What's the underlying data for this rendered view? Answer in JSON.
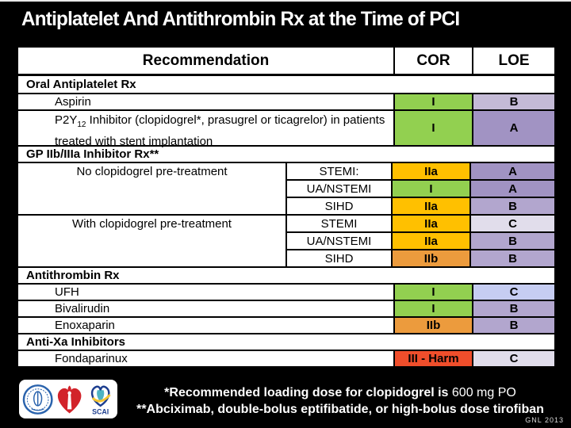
{
  "title": "Antiplatelet And Antithrombin Rx at the Time of PCI",
  "colors": {
    "slide_bg": "#000000",
    "table_bg": "#FFFFFF",
    "cor_I": "#92D050",
    "cor_IIa": "#FFC000",
    "cor_IIb": "#EC9B3D",
    "cor_III_harm": "#EF4E2B",
    "loe_A": "#A193C3",
    "loe_B": "#B2A6CE",
    "loe_B_light": "#C4BAD6",
    "loe_C": "#E1DDEB",
    "loe_C_blue": "#C6CDF2"
  },
  "table": {
    "headers": {
      "recommendation": "Recommendation",
      "cor": "COR",
      "loe": "LOE"
    },
    "rows": [
      {
        "type": "section",
        "label": "Oral Antiplatelet Rx"
      },
      {
        "type": "simple",
        "label": "Aspirin",
        "cor": "I",
        "cor_bg": "#92D050",
        "loe": "B",
        "loe_bg": "#C4BAD6"
      },
      {
        "type": "simple",
        "tall": true,
        "label_parts": {
          "pre": "P2Y",
          "sub": "12",
          "post": " Inhibitor (clopidogrel*, prasugrel or ticagrelor) in patients treated with stent implantation"
        },
        "cor": "I",
        "cor_bg": "#92D050",
        "loe": "A",
        "loe_bg": "#A193C3"
      },
      {
        "type": "section",
        "label": "GP IIb/IIIa Inhibitor Rx**"
      },
      {
        "type": "group",
        "label": "No clopidogrel pre-treatment",
        "subrows": [
          {
            "label": "STEMI:",
            "cor": "IIa",
            "cor_bg": "#FFC000",
            "loe": "A",
            "loe_bg": "#A193C3"
          },
          {
            "label": "UA/NSTEMI",
            "cor": "I",
            "cor_bg": "#92D050",
            "loe": "A",
            "loe_bg": "#A193C3"
          },
          {
            "label": "SIHD",
            "cor": "IIa",
            "cor_bg": "#FFC000",
            "loe": "B",
            "loe_bg": "#B2A6CE"
          }
        ]
      },
      {
        "type": "group",
        "label": "With clopidogrel pre-treatment",
        "subrows": [
          {
            "label": "STEMI",
            "cor": "IIa",
            "cor_bg": "#FFC000",
            "loe": "C",
            "loe_bg": "#E1DDEB"
          },
          {
            "label": "UA/NSTEMI",
            "cor": "IIa",
            "cor_bg": "#FFC000",
            "loe": "B",
            "loe_bg": "#B2A6CE"
          },
          {
            "label": "SIHD",
            "cor": "IIb",
            "cor_bg": "#EC9B3D",
            "loe": "B",
            "loe_bg": "#B2A6CE"
          }
        ]
      },
      {
        "type": "section",
        "label": "Antithrombin Rx"
      },
      {
        "type": "simple",
        "label": "UFH",
        "cor": "I",
        "cor_bg": "#92D050",
        "loe": "C",
        "loe_bg": "#C6CDF2"
      },
      {
        "type": "simple",
        "label": "Bivalirudin",
        "cor": "I",
        "cor_bg": "#92D050",
        "loe": "B",
        "loe_bg": "#B2A6CE"
      },
      {
        "type": "simple",
        "label": "Enoxaparin",
        "cor": "IIb",
        "cor_bg": "#EC9B3D",
        "loe": "B",
        "loe_bg": "#B2A6CE"
      },
      {
        "type": "section",
        "label": "Anti-Xa Inhibitors"
      },
      {
        "type": "simple",
        "label": "Fondaparinux",
        "cor": "III - Harm",
        "cor_bg": "#EF4E2B",
        "loe": "C",
        "loe_bg": "#E1DDEB"
      }
    ]
  },
  "footnotes": {
    "line1_bold": "*Recommended loading dose for clopidogrel is ",
    "line1_normal": "600 mg PO",
    "line2": "**Abciximab, double-bolus eptifibatide, or high-bolus dose tirofiban"
  },
  "logos": {
    "acc": "acc-seal-logo",
    "aha": "aha-heart-torch-logo",
    "scai": "scai-logo",
    "scai_text": "SCAI"
  },
  "credit": "GNL 2013"
}
